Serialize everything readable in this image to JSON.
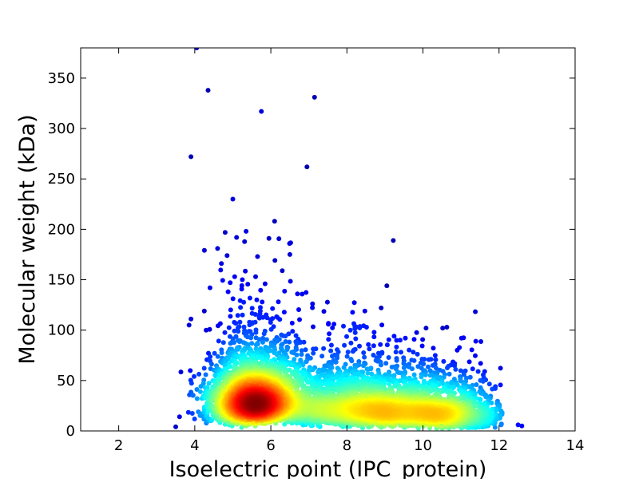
{
  "chart_data": {
    "type": "scatter",
    "title": "",
    "xlabel": "Isoelectric point (IPC_protein)",
    "ylabel": "Molecular weight (kDa)",
    "xlim": [
      1,
      14
    ],
    "ylim": [
      0,
      380
    ],
    "xticks": [
      2,
      4,
      6,
      8,
      10,
      12,
      14
    ],
    "yticks": [
      0,
      50,
      100,
      150,
      200,
      250,
      300,
      350
    ],
    "grid": false,
    "legend": "none",
    "colormap": "jet (density-colored points: blue = sparse, red = dense)",
    "marker_color_range": [
      "#00008f",
      "#0000ff",
      "#00ffff",
      "#ffff00",
      "#ff0000",
      "#800000"
    ],
    "dense_clusters": [
      {
        "center_x": 5.5,
        "center_y": 30,
        "peak_color": "#ff0000"
      },
      {
        "center_x": 8.7,
        "center_y": 23,
        "peak_color": "#00ffff"
      }
    ],
    "outliers": [
      {
        "x": 4.05,
        "y": 380
      },
      {
        "x": 4.35,
        "y": 338
      },
      {
        "x": 7.15,
        "y": 331
      },
      {
        "x": 5.75,
        "y": 317
      },
      {
        "x": 3.9,
        "y": 272
      },
      {
        "x": 6.95,
        "y": 262
      },
      {
        "x": 5.0,
        "y": 230
      },
      {
        "x": 6.1,
        "y": 208
      },
      {
        "x": 4.8,
        "y": 197
      },
      {
        "x": 5.35,
        "y": 198
      },
      {
        "x": 5.1,
        "y": 192
      },
      {
        "x": 5.95,
        "y": 191
      },
      {
        "x": 4.6,
        "y": 181
      },
      {
        "x": 4.85,
        "y": 174
      },
      {
        "x": 6.5,
        "y": 175
      },
      {
        "x": 5.65,
        "y": 173
      },
      {
        "x": 4.7,
        "y": 166
      },
      {
        "x": 6.3,
        "y": 159
      },
      {
        "x": 5.05,
        "y": 153
      },
      {
        "x": 5.6,
        "y": 153
      },
      {
        "x": 5.25,
        "y": 150
      },
      {
        "x": 4.4,
        "y": 142
      },
      {
        "x": 9.05,
        "y": 144
      },
      {
        "x": 5.85,
        "y": 146
      },
      {
        "x": 6.7,
        "y": 136
      },
      {
        "x": 4.25,
        "y": 119
      },
      {
        "x": 3.9,
        "y": 111
      },
      {
        "x": 3.85,
        "y": 105
      },
      {
        "x": 4.3,
        "y": 100
      },
      {
        "x": 8.9,
        "y": 122
      },
      {
        "x": 9.4,
        "y": 90
      },
      {
        "x": 10.9,
        "y": 80
      },
      {
        "x": 12.5,
        "y": 6
      },
      {
        "x": 12.6,
        "y": 5
      },
      {
        "x": 11.6,
        "y": 53
      },
      {
        "x": 11.9,
        "y": 42
      },
      {
        "x": 12.05,
        "y": 20
      },
      {
        "x": 3.5,
        "y": 4
      },
      {
        "x": 3.6,
        "y": 14
      }
    ]
  }
}
